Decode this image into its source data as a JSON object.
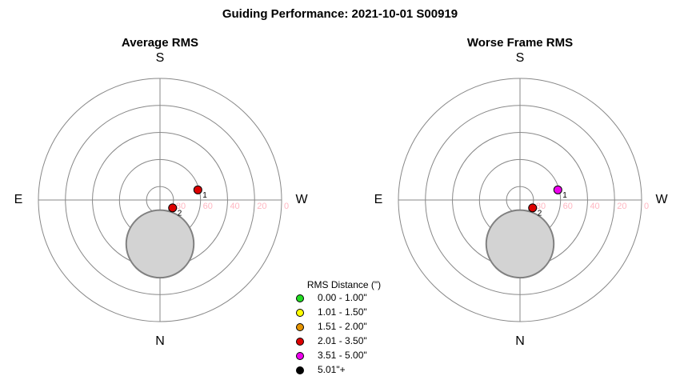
{
  "title": "Guiding Performance: 2021-10-01 S00919",
  "legend": {
    "title": "RMS Distance (\")",
    "items": [
      {
        "label": "0.00 - 1.00\"",
        "color": "#22dd22"
      },
      {
        "label": "1.01 - 1.50\"",
        "color": "#ffff00"
      },
      {
        "label": "1.51 - 2.00\"",
        "color": "#e59400"
      },
      {
        "label": "2.01 - 3.50\"",
        "color": "#dd0000"
      },
      {
        "label": "3.51 - 5.00\"",
        "color": "#ee00ee"
      },
      {
        "label": "5.01\"+",
        "color": "#000000"
      }
    ]
  },
  "chart_data": [
    {
      "type": "polar",
      "title": "Average RMS",
      "rlim": [
        90,
        0
      ],
      "rticks": [
        80,
        60,
        40,
        20,
        0
      ],
      "directions": [
        {
          "label": "S",
          "az": 180
        },
        {
          "label": "W",
          "az": 270
        },
        {
          "label": "N",
          "az": 0
        },
        {
          "label": "E",
          "az": 90
        }
      ],
      "shade": {
        "alt": 57.5,
        "az": 0,
        "radius": 25
      },
      "series": [
        {
          "name": "1",
          "color": "#dd0000",
          "alt": 61,
          "az": 255
        },
        {
          "name": "2",
          "color": "#dd0000",
          "alt": 79,
          "az": 302
        }
      ]
    },
    {
      "type": "polar",
      "title": "Worse Frame RMS",
      "rlim": [
        90,
        0
      ],
      "rticks": [
        80,
        60,
        40,
        20,
        0
      ],
      "directions": [
        {
          "label": "S",
          "az": 180
        },
        {
          "label": "W",
          "az": 270
        },
        {
          "label": "N",
          "az": 0
        },
        {
          "label": "E",
          "az": 90
        }
      ],
      "shade": {
        "alt": 57.5,
        "az": 0,
        "radius": 25
      },
      "series": [
        {
          "name": "1",
          "color": "#ee00ee",
          "alt": 61,
          "az": 255
        },
        {
          "name": "2",
          "color": "#dd0000",
          "alt": 79,
          "az": 302
        }
      ]
    }
  ]
}
